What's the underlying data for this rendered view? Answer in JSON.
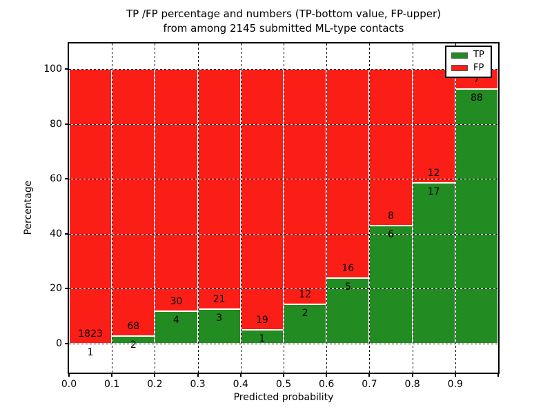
{
  "title": {
    "line1": "TP /FP percentage and numbers (TP-bottom value, FP-upper)",
    "line2": "from among 2145 submitted ML-type contacts"
  },
  "chart_data": {
    "type": "bar",
    "stacked": true,
    "normalized_to_percent": true,
    "title": "TP /FP percentage and numbers (TP-bottom value, FP-upper) from among 2145 submitted ML-type contacts",
    "xlabel": "Predicted probability",
    "ylabel": "Percentage",
    "total_contacts": 2145,
    "bins": [
      "0.0-0.1",
      "0.1-0.2",
      "0.2-0.3",
      "0.3-0.4",
      "0.4-0.5",
      "0.5-0.6",
      "0.6-0.7",
      "0.7-0.8",
      "0.8-0.9",
      "0.9-1.0"
    ],
    "series": [
      {
        "name": "TP",
        "color": "#228b22",
        "counts": [
          1,
          2,
          4,
          3,
          1,
          2,
          5,
          6,
          17,
          88
        ]
      },
      {
        "name": "FP",
        "color": "#fb1e17",
        "counts": [
          1823,
          68,
          30,
          21,
          19,
          12,
          16,
          8,
          12,
          7
        ]
      }
    ],
    "tp_percent": [
      0.05,
      2.86,
      11.76,
      12.5,
      5.0,
      14.29,
      23.81,
      42.86,
      58.62,
      92.63
    ],
    "x_tick_labels": [
      "0.0",
      "0.1",
      "0.2",
      "0.3",
      "0.4",
      "0.5",
      "0.6",
      "0.7",
      "0.8",
      "0.9"
    ],
    "y_ticks": [
      0,
      20,
      40,
      60,
      80,
      100
    ],
    "xlim": [
      0.0,
      1.0
    ],
    "ylim": [
      -10.6,
      109.3
    ],
    "grid": true,
    "grid_style": "dotted",
    "legend": {
      "position": "upper right",
      "entries": [
        {
          "label": "TP",
          "color": "#228b22"
        },
        {
          "label": "FP",
          "color": "#fb1e17"
        }
      ]
    }
  }
}
